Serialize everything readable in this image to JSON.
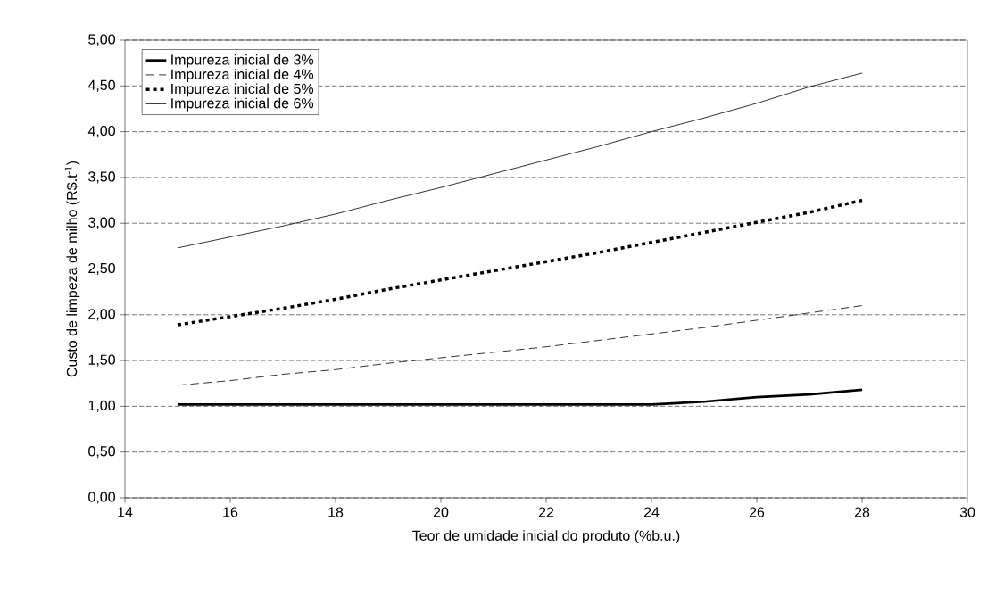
{
  "chart_data": {
    "type": "line",
    "xlabel": "Teor de umidade inicial do produto (%b.u.)",
    "ylabel": "Custo de limpeza de milho (R$.t$^{-1}$)",
    "x": [
      15,
      16,
      17,
      18,
      19,
      20,
      21,
      22,
      23,
      24,
      25,
      26,
      27,
      28
    ],
    "series": [
      {
        "name": "Impureza inicial de 3%",
        "color": "#000000",
        "line_style": "solid",
        "values": [
          1.02,
          1.02,
          1.02,
          1.02,
          1.02,
          1.02,
          1.02,
          1.02,
          1.02,
          1.02,
          1.05,
          1.1,
          1.13,
          1.18
        ]
      },
      {
        "name": "Impureza inicial de 4%",
        "color": "#000000",
        "line_style": "dashed",
        "values": [
          1.23,
          1.28,
          1.35,
          1.4,
          1.47,
          1.53,
          1.59,
          1.65,
          1.72,
          1.79,
          1.86,
          1.94,
          2.02,
          2.1
        ]
      },
      {
        "name": "Impureza inicial de 5%",
        "color": "#000000",
        "line_style": "dotted",
        "values": [
          1.89,
          1.98,
          2.07,
          2.17,
          2.28,
          2.38,
          2.48,
          2.58,
          2.68,
          2.79,
          2.9,
          3.01,
          3.12,
          3.25
        ]
      },
      {
        "name": "Impureza inicial de 6%",
        "color": "#000000",
        "line_style": "solid",
        "values": [
          2.73,
          2.85,
          2.97,
          3.1,
          3.25,
          3.39,
          3.54,
          3.69,
          3.84,
          4.0,
          4.15,
          4.31,
          4.49,
          4.64
        ]
      }
    ],
    "xlim": [
      14,
      30
    ],
    "xticks": [
      14,
      16,
      18,
      20,
      22,
      24,
      26,
      28,
      30
    ],
    "ylim": [
      0,
      5
    ],
    "yticks": [
      {
        "value": 0,
        "label": "0,00"
      },
      {
        "value": 0.5,
        "label": "0,50"
      },
      {
        "value": 1,
        "label": "1,00"
      },
      {
        "value": 1.5,
        "label": "1,50"
      },
      {
        "value": 2,
        "label": "2,00"
      },
      {
        "value": 2.5,
        "label": "2,50"
      },
      {
        "value": 3,
        "label": "3,00"
      },
      {
        "value": 3.5,
        "label": "3,50"
      },
      {
        "value": 4,
        "label": "4,00"
      },
      {
        "value": 4.5,
        "label": "4,50"
      },
      {
        "value": 5,
        "label": "5,00"
      }
    ],
    "grid": "y",
    "legend": "top left",
    "marker": "none"
  }
}
